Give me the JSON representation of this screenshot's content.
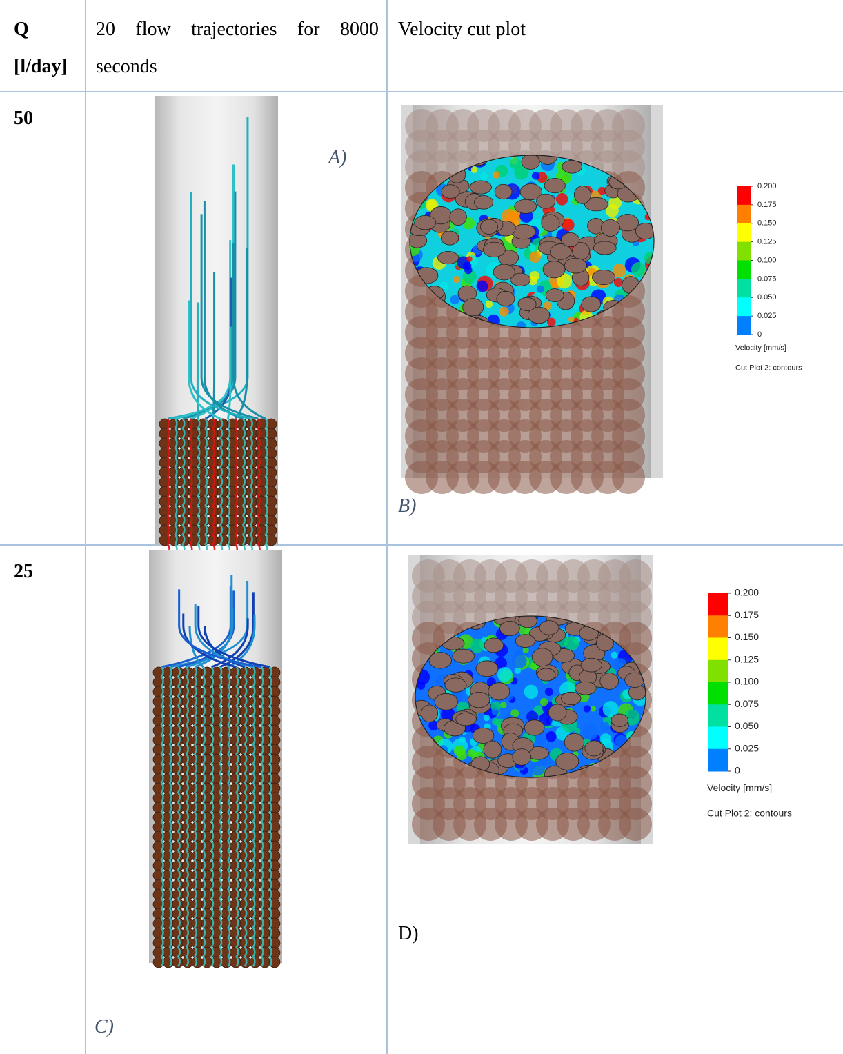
{
  "table": {
    "header": [
      "Q [l/day]",
      "20 flow trajectories for 8000 seconds",
      "Velocity cut plot"
    ],
    "rows": [
      {
        "q": "50",
        "trajectory_label": "A)",
        "cut_label": "B)",
        "legend": {
          "ticks": [
            "0.200",
            "0.175",
            "0.150",
            "0.125",
            "0.100",
            "0.075",
            "0.050",
            "0.025",
            "0"
          ],
          "title": "Velocity [mm/s]",
          "caption": "Cut Plot 2: contours"
        }
      },
      {
        "q": "25",
        "trajectory_label": "C)",
        "cut_label": "D)",
        "legend": {
          "ticks": [
            "0.200",
            "0.175",
            "0.150",
            "0.125",
            "0.100",
            "0.075",
            "0.050",
            "0.025",
            "0"
          ],
          "title": "Velocity [mm/s]",
          "caption": "Cut Plot 2: contours"
        }
      }
    ]
  }
}
